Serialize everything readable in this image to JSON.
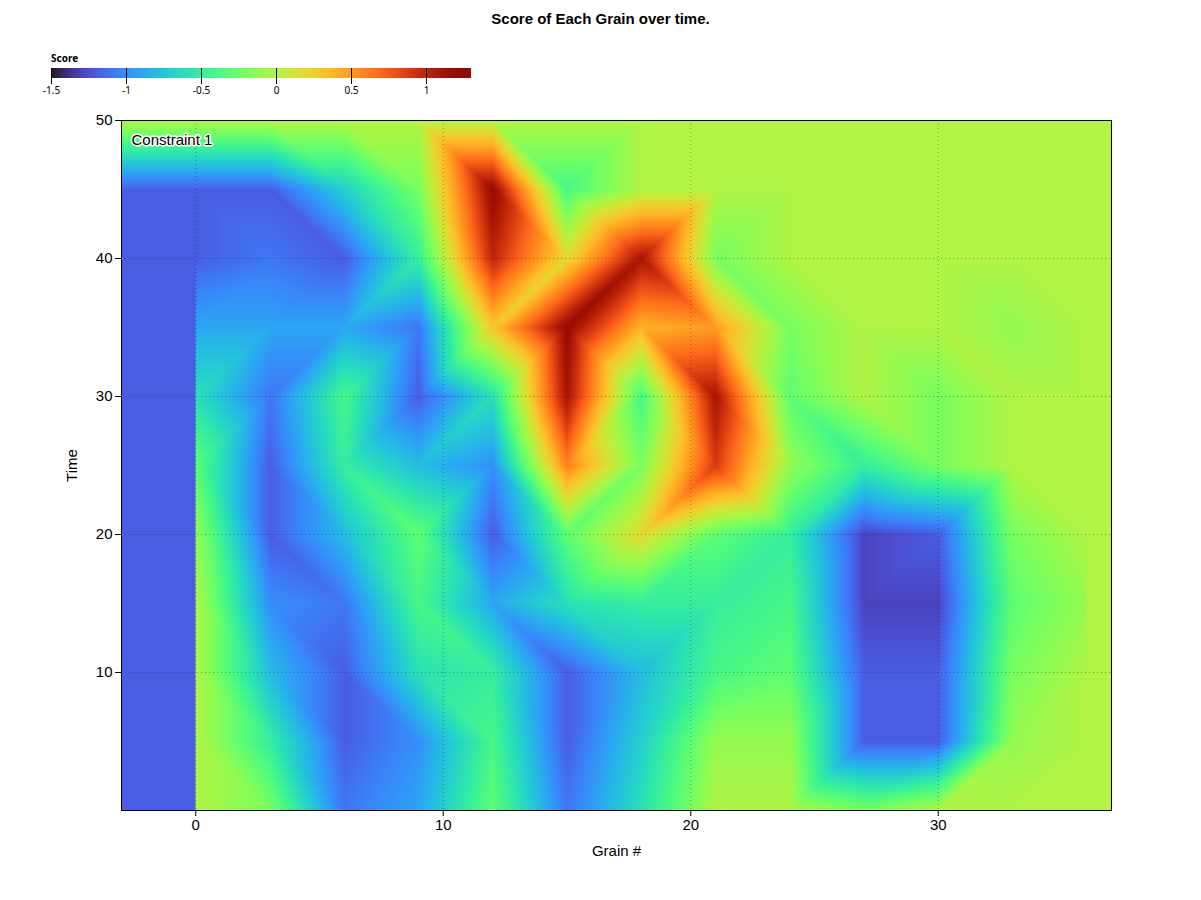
{
  "chart_data": {
    "type": "heatmap",
    "title": "Score of Each Grain over time.",
    "x_label": "Grain #",
    "y_label": "Time",
    "z_label": "Score",
    "annotation": "Constraint 1",
    "x": [
      0,
      3,
      6,
      9,
      12,
      15,
      18,
      21,
      24,
      27,
      30,
      33,
      36
    ],
    "y": [
      0,
      5,
      10,
      15,
      20,
      25,
      30,
      35,
      40,
      45,
      50
    ],
    "values": [
      [
        0,
        -0.2,
        -1.1,
        -0.9,
        -0.3,
        -1.1,
        -0.6,
        0,
        0,
        -0.2,
        0,
        0,
        0
      ],
      [
        0,
        -0.5,
        -1.2,
        -1.0,
        -0.4,
        -1.2,
        -0.7,
        -0.1,
        -0.1,
        -1.2,
        -1.2,
        -0.1,
        0
      ],
      [
        0,
        -0.8,
        -1.2,
        -0.6,
        -0.5,
        -1.2,
        -0.8,
        -0.4,
        -0.3,
        -1.2,
        -1.2,
        -0.2,
        0
      ],
      [
        0,
        -1.0,
        -1.1,
        -0.4,
        -0.9,
        -0.6,
        -0.5,
        -0.5,
        -0.4,
        -1.3,
        -1.3,
        -0.3,
        -0.1
      ],
      [
        -0.1,
        -1.2,
        -0.8,
        -0.3,
        -1.2,
        -0.3,
        0.2,
        -0.3,
        -0.5,
        -1.3,
        -1.2,
        -0.2,
        0
      ],
      [
        -0.3,
        -1.2,
        -0.5,
        -0.8,
        -1.0,
        0.6,
        -0.2,
        0.9,
        -0.1,
        -0.5,
        -0.2,
        0,
        0
      ],
      [
        -0.6,
        -1.1,
        -0.4,
        -1.2,
        -0.6,
        1.1,
        -0.4,
        1.1,
        -0.3,
        0,
        -0.2,
        0,
        0
      ],
      [
        -0.9,
        -0.9,
        -0.9,
        -1.1,
        0.3,
        1.2,
        0.4,
        0.5,
        -0.2,
        0,
        0,
        -0.1,
        0
      ],
      [
        -1.2,
        -1.1,
        -1.2,
        -0.5,
        1.0,
        0.2,
        1.1,
        -0.2,
        0,
        0,
        0,
        0,
        0
      ],
      [
        -1.2,
        -1.2,
        -0.7,
        -0.2,
        1.2,
        -0.4,
        0,
        0,
        0,
        0,
        0,
        0,
        0
      ],
      [
        0,
        0,
        0,
        0,
        0,
        0,
        0,
        0,
        0,
        0,
        0,
        0,
        0
      ]
    ],
    "xlim": [
      -3,
      37
    ],
    "xticks": [
      0,
      10,
      20,
      30
    ],
    "ylim": [
      0,
      50
    ],
    "yticks": [
      10,
      20,
      30,
      40,
      50
    ],
    "zlim": [
      -1.5,
      1.3
    ],
    "zticks": [
      -1.5,
      -1,
      -0.5,
      0,
      0.5,
      1
    ],
    "color": "turbo",
    "grid": true
  }
}
